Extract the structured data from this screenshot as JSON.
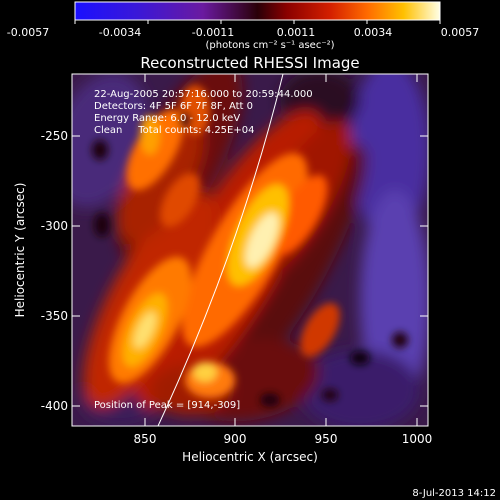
{
  "colorbar": {
    "ticks": [
      "-0.0057",
      "-0.0034",
      "-0.0011",
      "0.0011",
      "0.0034",
      "0.0057"
    ],
    "units": "(photons cm⁻² s⁻¹ asec⁻²)"
  },
  "plot": {
    "title": "Reconstructed RHESSI Image",
    "xlabel": "Heliocentric X (arcsec)",
    "ylabel": "Heliocentric Y (arcsec)",
    "xticks": [
      "850",
      "900",
      "950",
      "1000"
    ],
    "yticks": [
      "-250",
      "-300",
      "-350",
      "-400"
    ]
  },
  "annotations": {
    "line1": "22-Aug-2005 20:57:16.000 to 20:59:44.000",
    "line2": "Detectors: 4F 5F 6F 7F 8F, Att 0",
    "line3": "Energy Range: 6.0 - 12.0 keV",
    "line4": "Clean     Total counts: 4.25E+04",
    "peak": "Position of Peak = [914,-309]"
  },
  "footer": {
    "timestamp": "8-Jul-2013 14:12"
  }
}
